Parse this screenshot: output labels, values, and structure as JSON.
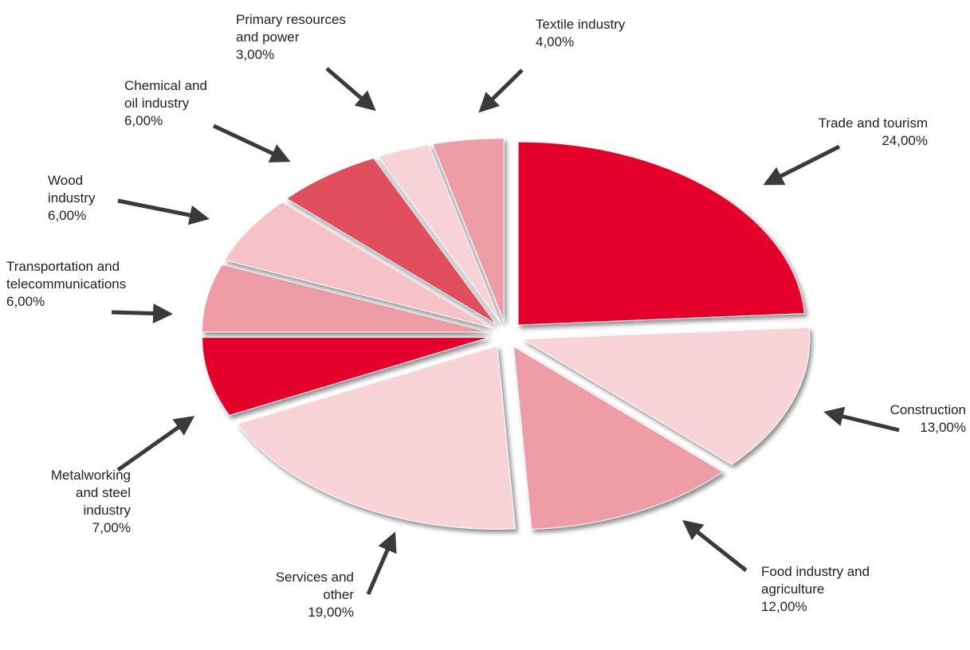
{
  "chart_data": {
    "type": "pie",
    "title": "",
    "unit": "%",
    "slices": [
      {
        "label": "Trade and tourism",
        "value": 24,
        "value_label": "24,00%",
        "color": "#e4002b"
      },
      {
        "label": "Construction",
        "value": 13,
        "value_label": "13,00%",
        "color": "#f8d4d9"
      },
      {
        "label": "Food industry and agriculture",
        "value": 12,
        "value_label": "12,00%",
        "color": "#ee9ca5"
      },
      {
        "label": "Services and other",
        "value": 19,
        "value_label": "19,00%",
        "color": "#f8d4d9"
      },
      {
        "label": "Metalworking and steel industry",
        "value": 7,
        "value_label": "7,00%",
        "color": "#e4002b"
      },
      {
        "label": "Transportation and telecommunications",
        "value": 6,
        "value_label": "6,00%",
        "color": "#ee9ca5"
      },
      {
        "label": "Wood industry",
        "value": 6,
        "value_label": "6,00%",
        "color": "#f5c2c8"
      },
      {
        "label": "Chemical and oil industry",
        "value": 6,
        "value_label": "6,00%",
        "color": "#e1505e"
      },
      {
        "label": "Primary resources and power",
        "value": 3,
        "value_label": "3,00%",
        "color": "#f8d4d9"
      },
      {
        "label": "Textile industry",
        "value": 4,
        "value_label": "4,00%",
        "color": "#ee9ca5"
      }
    ],
    "legend": "none",
    "grid": false
  }
}
